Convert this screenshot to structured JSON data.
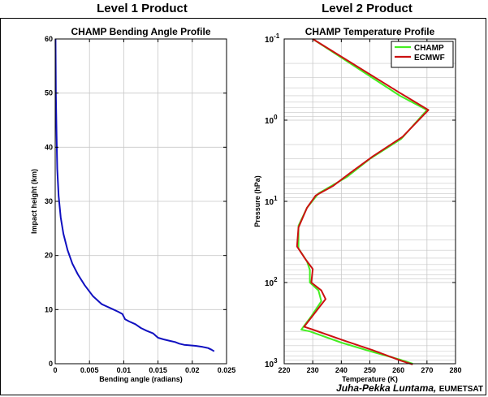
{
  "headings": {
    "left": "Level 1 Product",
    "right": "Level 2 Product"
  },
  "credit": {
    "name": "Juha-Pekka Luntama,",
    "org": "EUMETSAT"
  },
  "chart_data": [
    {
      "type": "line",
      "title": "CHAMP Bending Angle Profile",
      "xlabel": "Bending angle (radians)",
      "ylabel": "Impact height (km)",
      "xlim": [
        0,
        0.025
      ],
      "ylim": [
        0,
        60
      ],
      "xticks": [
        0,
        0.005,
        0.01,
        0.015,
        0.02,
        0.025
      ],
      "xtick_labels": [
        "0",
        "0.005",
        "0.01",
        "0.015",
        "0.02",
        "0.025"
      ],
      "yticks": [
        0,
        10,
        20,
        30,
        40,
        50,
        60
      ],
      "ytick_labels": [
        "0",
        "10",
        "20",
        "30",
        "40",
        "50",
        "60"
      ],
      "grid": true,
      "series": [
        {
          "color": "#1010c0",
          "points": [
            [
              5e-05,
              60
            ],
            [
              0.0001,
              50
            ],
            [
              0.0002,
              42
            ],
            [
              0.0003,
              36
            ],
            [
              0.0005,
              31
            ],
            [
              0.0008,
              27
            ],
            [
              0.0012,
              24
            ],
            [
              0.0018,
              21
            ],
            [
              0.0025,
              18.5
            ],
            [
              0.0033,
              16.5
            ],
            [
              0.0043,
              14.5
            ],
            [
              0.0055,
              12.5
            ],
            [
              0.0068,
              11
            ],
            [
              0.008,
              10.3
            ],
            [
              0.0092,
              9.6
            ],
            [
              0.0098,
              9.2
            ],
            [
              0.0102,
              8.2
            ],
            [
              0.0108,
              7.8
            ],
            [
              0.0117,
              7.3
            ],
            [
              0.0125,
              6.6
            ],
            [
              0.0133,
              6.1
            ],
            [
              0.0143,
              5.6
            ],
            [
              0.015,
              4.8
            ],
            [
              0.0158,
              4.5
            ],
            [
              0.0168,
              4.2
            ],
            [
              0.0175,
              4.0
            ],
            [
              0.0181,
              3.7
            ],
            [
              0.0188,
              3.5
            ],
            [
              0.0195,
              3.4
            ],
            [
              0.0205,
              3.3
            ],
            [
              0.0215,
              3.1
            ],
            [
              0.0223,
              2.9
            ],
            [
              0.0228,
              2.6
            ],
            [
              0.0232,
              2.3
            ]
          ]
        }
      ]
    },
    {
      "type": "line",
      "title": "CHAMP Temperature Profile",
      "xlabel": "Temperature (K)",
      "ylabel": "Pressure (hPa)",
      "xlim": [
        220,
        280
      ],
      "ylim": [
        0.1,
        1000
      ],
      "yscale": "log",
      "y_inverted": true,
      "xticks": [
        220,
        230,
        240,
        250,
        260,
        270,
        280
      ],
      "xtick_labels": [
        "220",
        "230",
        "240",
        "250",
        "260",
        "270",
        "280"
      ],
      "yticks": [
        0.1,
        1,
        10,
        100,
        1000
      ],
      "ytick_labels": [
        {
          "base": "10",
          "exp": "-1"
        },
        {
          "base": "10",
          "exp": "0"
        },
        {
          "base": "10",
          "exp": "1"
        },
        {
          "base": "10",
          "exp": "2"
        },
        {
          "base": "10",
          "exp": "3"
        }
      ],
      "grid": true,
      "legend": "top-right",
      "series": [
        {
          "name": "CHAMP",
          "color": "#44ee22",
          "points": [
            [
              230,
              0.1
            ],
            [
              260.5,
              0.5
            ],
            [
              270,
              0.75
            ],
            [
              261,
              1.7
            ],
            [
              250,
              3
            ],
            [
              242,
              5
            ],
            [
              232,
              8
            ],
            [
              228,
              12
            ],
            [
              225,
              20
            ],
            [
              225,
              38
            ],
            [
              228,
              55
            ],
            [
              229,
              70
            ],
            [
              229,
              100
            ],
            [
              232,
              125
            ],
            [
              233,
              170
            ],
            [
              229.5,
              260
            ],
            [
              226,
              380
            ],
            [
              229,
              400
            ],
            [
              240,
              550
            ],
            [
              250,
              700
            ],
            [
              261,
              900
            ],
            [
              265,
              1000
            ]
          ]
        },
        {
          "name": "ECMWF",
          "color": "#cc1111",
          "points": [
            [
              230,
              0.1
            ],
            [
              260,
              0.45
            ],
            [
              270.5,
              0.75
            ],
            [
              261.5,
              1.6
            ],
            [
              251,
              2.8
            ],
            [
              243,
              4.5
            ],
            [
              237,
              6.5
            ],
            [
              231,
              8.5
            ],
            [
              228,
              12
            ],
            [
              225,
              21
            ],
            [
              224.5,
              36
            ],
            [
              227.5,
              52
            ],
            [
              230,
              68
            ],
            [
              229.5,
              100
            ],
            [
              233,
              125
            ],
            [
              234.5,
              160
            ],
            [
              230,
              255
            ],
            [
              227,
              350
            ],
            [
              230,
              380
            ],
            [
              241,
              520
            ],
            [
              251,
              680
            ],
            [
              261,
              920
            ],
            [
              265,
              1020
            ]
          ]
        }
      ]
    }
  ]
}
